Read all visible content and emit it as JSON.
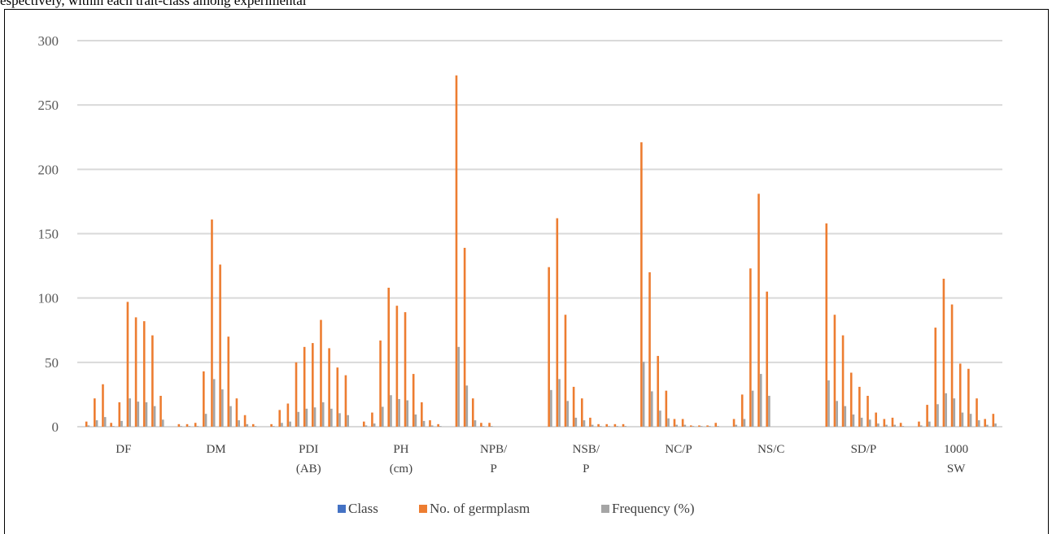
{
  "page_caption": "espectively, within each trait-class among experimental",
  "chart_data": {
    "type": "bar",
    "title": "",
    "xlabel": "",
    "ylabel": "",
    "ylim": [
      0,
      300
    ],
    "yticks": [
      0,
      50,
      100,
      150,
      200,
      250,
      300
    ],
    "grid": true,
    "legend_position": "bottom",
    "colors": {
      "Class": "#4472C4",
      "No. of germplasm": "#ED7D31",
      "Frequency (%)": "#A5A5A5"
    },
    "series": [
      {
        "name": "Class",
        "values": [
          [
            0,
            0,
            0,
            0,
            0,
            0,
            0,
            0,
            0,
            0
          ],
          [
            0,
            0,
            0,
            0,
            0,
            0,
            0,
            0,
            0,
            0
          ],
          [
            0,
            0,
            0,
            0,
            0,
            0,
            0,
            0,
            0,
            0
          ],
          [
            0,
            0,
            0,
            0,
            0,
            0,
            0,
            0,
            0,
            0
          ],
          [
            0,
            0,
            0,
            0,
            0,
            0,
            0,
            0,
            0,
            0
          ],
          [
            0,
            0,
            0,
            0,
            0,
            0,
            0,
            0,
            0,
            0
          ],
          [
            0,
            0,
            0,
            0,
            0,
            0,
            0,
            0,
            0,
            0
          ],
          [
            0,
            0,
            0,
            0,
            0,
            0,
            0,
            0,
            0,
            0
          ],
          [
            0,
            0,
            0,
            0,
            0,
            0,
            0,
            0,
            0,
            0
          ],
          [
            0,
            0,
            0,
            0,
            0,
            0,
            0,
            0,
            0,
            0
          ]
        ]
      },
      {
        "name": "No. of germplasm",
        "values": [
          [
            4,
            22,
            33,
            3,
            19,
            97,
            85,
            82,
            71,
            24
          ],
          [
            2,
            2,
            3,
            43,
            161,
            126,
            70,
            22,
            9,
            2
          ],
          [
            2,
            13,
            18,
            50,
            62,
            65,
            83,
            61,
            46,
            40
          ],
          [
            4,
            11,
            67,
            108,
            94,
            89,
            41,
            19,
            5,
            2
          ],
          [
            273,
            139,
            22,
            3,
            3,
            0,
            0,
            0,
            0,
            0
          ],
          [
            124,
            162,
            87,
            31,
            22,
            7,
            2,
            2,
            2,
            2
          ],
          [
            221,
            120,
            55,
            28,
            6,
            6,
            1,
            1,
            1,
            3
          ],
          [
            6,
            25,
            123,
            181,
            105,
            0,
            0,
            0,
            0,
            0
          ],
          [
            158,
            87,
            71,
            42,
            31,
            24,
            11,
            6,
            7,
            3
          ],
          [
            4,
            17,
            77,
            115,
            95,
            49,
            45,
            22,
            6,
            10
          ]
        ]
      },
      {
        "name": "Frequency (%)",
        "values": [
          [
            1,
            5,
            7.5,
            0.5,
            4.5,
            22,
            19.5,
            19,
            16,
            5.5
          ],
          [
            0.5,
            0.5,
            0.5,
            10,
            37,
            29,
            16,
            5,
            2,
            0.5
          ],
          [
            0.5,
            3,
            4,
            11.5,
            14,
            15,
            19,
            14,
            10.5,
            9
          ],
          [
            1,
            2.5,
            15.5,
            24.5,
            21.5,
            20.5,
            9.5,
            4.5,
            1,
            0.5
          ],
          [
            62,
            32,
            5,
            0.5,
            0.5,
            0,
            0,
            0,
            0,
            0
          ],
          [
            28.5,
            37,
            20,
            7,
            5,
            1.5,
            0.5,
            0.5,
            0.5,
            0.5
          ],
          [
            50.5,
            27.5,
            12.5,
            6.5,
            1.5,
            1.5,
            0.5,
            0.5,
            0.5,
            0.5
          ],
          [
            1.5,
            6,
            28,
            41,
            24,
            0,
            0,
            0,
            0,
            0
          ],
          [
            36,
            20,
            16,
            9.5,
            7,
            5.5,
            2.5,
            1.5,
            1.5,
            0.5
          ],
          [
            1,
            4,
            17.5,
            26,
            22,
            11,
            10,
            5,
            1.5,
            2.5
          ]
        ]
      }
    ],
    "category_labels": [
      {
        "line1": "DF",
        "line2": ""
      },
      {
        "line1": "DM",
        "line2": ""
      },
      {
        "line1": "PDI",
        "line2": "(AB)"
      },
      {
        "line1": "PH",
        "line2": "(cm)"
      },
      {
        "line1": "NPB/",
        "line2": "P"
      },
      {
        "line1": "NSB/",
        "line2": "P"
      },
      {
        "line1": "NC/P",
        "line2": ""
      },
      {
        "line1": "NS/C",
        "line2": ""
      },
      {
        "line1": "SD/P",
        "line2": ""
      },
      {
        "line1": "1000",
        "line2": "SW"
      }
    ],
    "legend": [
      "Class",
      "No. of germplasm",
      "Frequency (%)"
    ]
  }
}
